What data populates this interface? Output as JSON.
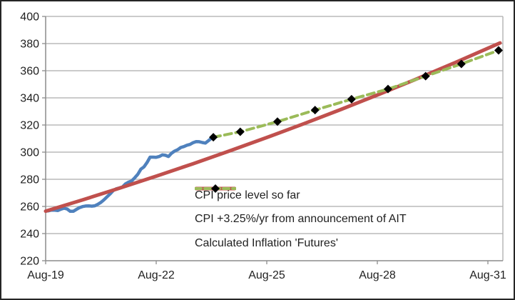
{
  "chart_data": {
    "type": "line",
    "title": "",
    "xlabel": "",
    "ylabel": "",
    "grid": true,
    "legend_position": "inside-lower-middle",
    "colors": {
      "actual_cpi": "#4F81BD",
      "cpi_path": "#C0504D",
      "futures": "#9BBB59",
      "marker": "#000000",
      "gridline": "#ACACAC",
      "axis": "#8C8C8C",
      "text": "#1f1f1f"
    },
    "x_axis": {
      "unit": "years-from-Aug-2019",
      "tick_labels": [
        "Aug-19",
        "Aug-22",
        "Aug-25",
        "Aug-28",
        "Aug-31"
      ],
      "tick_t": [
        0,
        3,
        6,
        9,
        12
      ],
      "t_max": 12.42
    },
    "y_axis": {
      "min": 220,
      "max": 400,
      "tick_step": 20,
      "tick_labels": [
        "220",
        "240",
        "260",
        "280",
        "300",
        "320",
        "340",
        "360",
        "380",
        "400"
      ]
    },
    "series": [
      {
        "name": "CPI price level so far",
        "style": "solid",
        "color_key": "actual_cpi",
        "cadence": "monthly",
        "t_start": 0,
        "values": [
          256.6,
          256.8,
          257.3,
          257.2,
          257.0,
          258.0,
          258.7,
          258.1,
          256.4,
          256.4,
          257.8,
          259.1,
          259.9,
          260.3,
          260.4,
          260.2,
          260.5,
          261.6,
          263.0,
          264.9,
          267.1,
          269.2,
          271.7,
          273.0,
          273.6,
          274.3,
          276.6,
          277.9,
          278.8,
          281.1,
          283.7,
          287.5,
          289.1,
          292.3,
          296.3,
          296.3,
          296.2,
          296.8,
          298.0,
          297.7,
          296.8,
          299.2,
          300.8,
          301.8,
          303.4,
          304.1,
          305.1,
          305.7,
          307.0,
          307.8,
          307.7,
          307.1,
          306.7,
          308.4,
          310.3
        ]
      },
      {
        "name": "CPI +3.25%/yr from announcement of AIT",
        "style": "solid",
        "color_key": "cpi_path",
        "annual_growth_pct": 3.25,
        "t": [
          0,
          1,
          2,
          3,
          4,
          5,
          6,
          7,
          8,
          9,
          10,
          11,
          12,
          12.33
        ],
        "values": [
          256.5,
          264.8,
          273.4,
          282.3,
          291.5,
          301.0,
          310.8,
          320.9,
          331.3,
          342.1,
          353.2,
          364.7,
          376.5,
          380.5
        ]
      },
      {
        "name": "Calculated Inflation 'Futures'",
        "style": "dashed",
        "marker": "diamond",
        "color_key": "futures",
        "t": [
          4.55,
          5.28,
          6.29,
          7.31,
          8.3,
          9.29,
          10.31,
          11.28,
          12.29
        ],
        "values": [
          311,
          315,
          322.5,
          331,
          339,
          346.5,
          356,
          365,
          375
        ]
      }
    ]
  }
}
